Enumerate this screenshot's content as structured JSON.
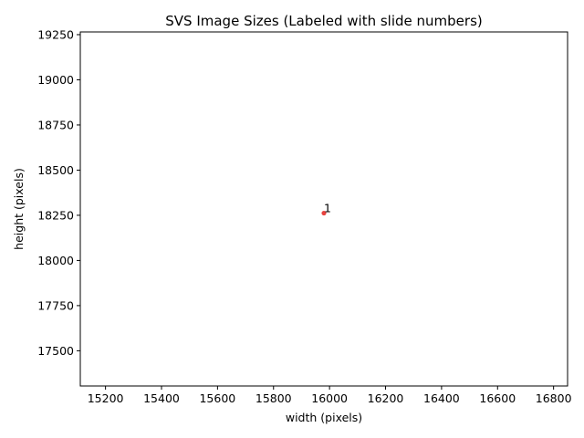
{
  "chart_data": {
    "type": "scatter",
    "title": "SVS Image Sizes (Labeled with slide numbers)",
    "xlabel": "width (pixels)",
    "ylabel": "height (pixels)",
    "xlim": [
      15110,
      16850
    ],
    "ylim": [
      17305,
      19265
    ],
    "xticks": [
      15200,
      15400,
      15600,
      15800,
      16000,
      16200,
      16400,
      16600,
      16800
    ],
    "yticks": [
      17500,
      17750,
      18000,
      18250,
      18500,
      18750,
      19000,
      19250
    ],
    "grid": false,
    "points": [
      {
        "x": 15980,
        "y": 18262,
        "label": "1"
      }
    ],
    "colors": {
      "point": "#e8423f"
    }
  }
}
